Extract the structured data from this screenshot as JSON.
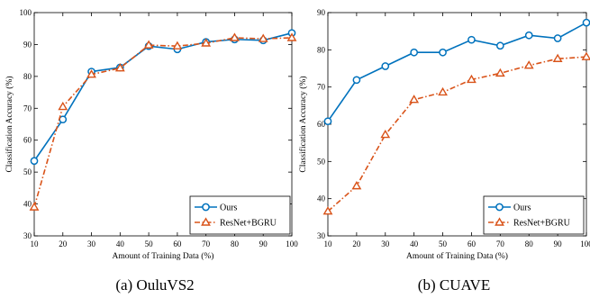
{
  "colors": {
    "ours": "#0072BD",
    "baseline": "#D95319",
    "marker_fill": "#ffffff",
    "axis": "#000000"
  },
  "chart_data": [
    {
      "type": "line",
      "caption": "(a) OuluVS2",
      "xlabel": "Amount of Training Data (%)",
      "ylabel": "Classification Accuracy (%)",
      "x": [
        10,
        20,
        30,
        40,
        50,
        60,
        70,
        80,
        90,
        100
      ],
      "xlim": [
        10,
        100
      ],
      "ylim": [
        30,
        100
      ],
      "xticks": [
        "10",
        "20",
        "30",
        "40",
        "50",
        "60",
        "70",
        "80",
        "90",
        "100"
      ],
      "yticks": [
        "30",
        "40",
        "50",
        "60",
        "70",
        "80",
        "90",
        "100"
      ],
      "yticks_values": [
        30,
        40,
        50,
        60,
        70,
        80,
        90,
        100
      ],
      "grid": false,
      "legend_position": "bottom-right",
      "series": [
        {
          "name": "Ours",
          "marker": "circle",
          "style": "solid",
          "values": [
            53.5,
            66.5,
            81.5,
            82.8,
            89.5,
            88.5,
            90.8,
            91.6,
            91.3,
            93.6
          ]
        },
        {
          "name": "ResNet+BGRU",
          "marker": "triangle",
          "style": "dashdot",
          "values": [
            39,
            70.5,
            80.6,
            82.6,
            89.8,
            89.5,
            90.4,
            92.1,
            91.8,
            92.1
          ]
        }
      ]
    },
    {
      "type": "line",
      "caption": "(b) CUAVE",
      "xlabel": "Amount of Training Data (%)",
      "ylabel": "Classification Accuracy (%)",
      "x": [
        10,
        20,
        30,
        40,
        50,
        60,
        70,
        80,
        90,
        100
      ],
      "xlim": [
        10,
        100
      ],
      "ylim": [
        30,
        90
      ],
      "xticks": [
        "10",
        "20",
        "30",
        "40",
        "50",
        "60",
        "70",
        "80",
        "90",
        "100"
      ],
      "yticks": [
        "30",
        "40",
        "50",
        "60",
        "70",
        "80",
        "90"
      ],
      "yticks_values": [
        30,
        40,
        50,
        60,
        70,
        80,
        90
      ],
      "grid": false,
      "legend_position": "bottom-right",
      "series": [
        {
          "name": "Ours",
          "marker": "circle",
          "style": "solid",
          "values": [
            60.8,
            71.9,
            75.6,
            79.3,
            79.3,
            82.7,
            81.1,
            83.9,
            83.1,
            87.3
          ]
        },
        {
          "name": "ResNet+BGRU",
          "marker": "triangle",
          "style": "dashdot",
          "values": [
            36.6,
            43.4,
            57.2,
            66.6,
            68.6,
            72,
            73.7,
            75.8,
            77.6,
            78.1
          ]
        }
      ]
    }
  ]
}
